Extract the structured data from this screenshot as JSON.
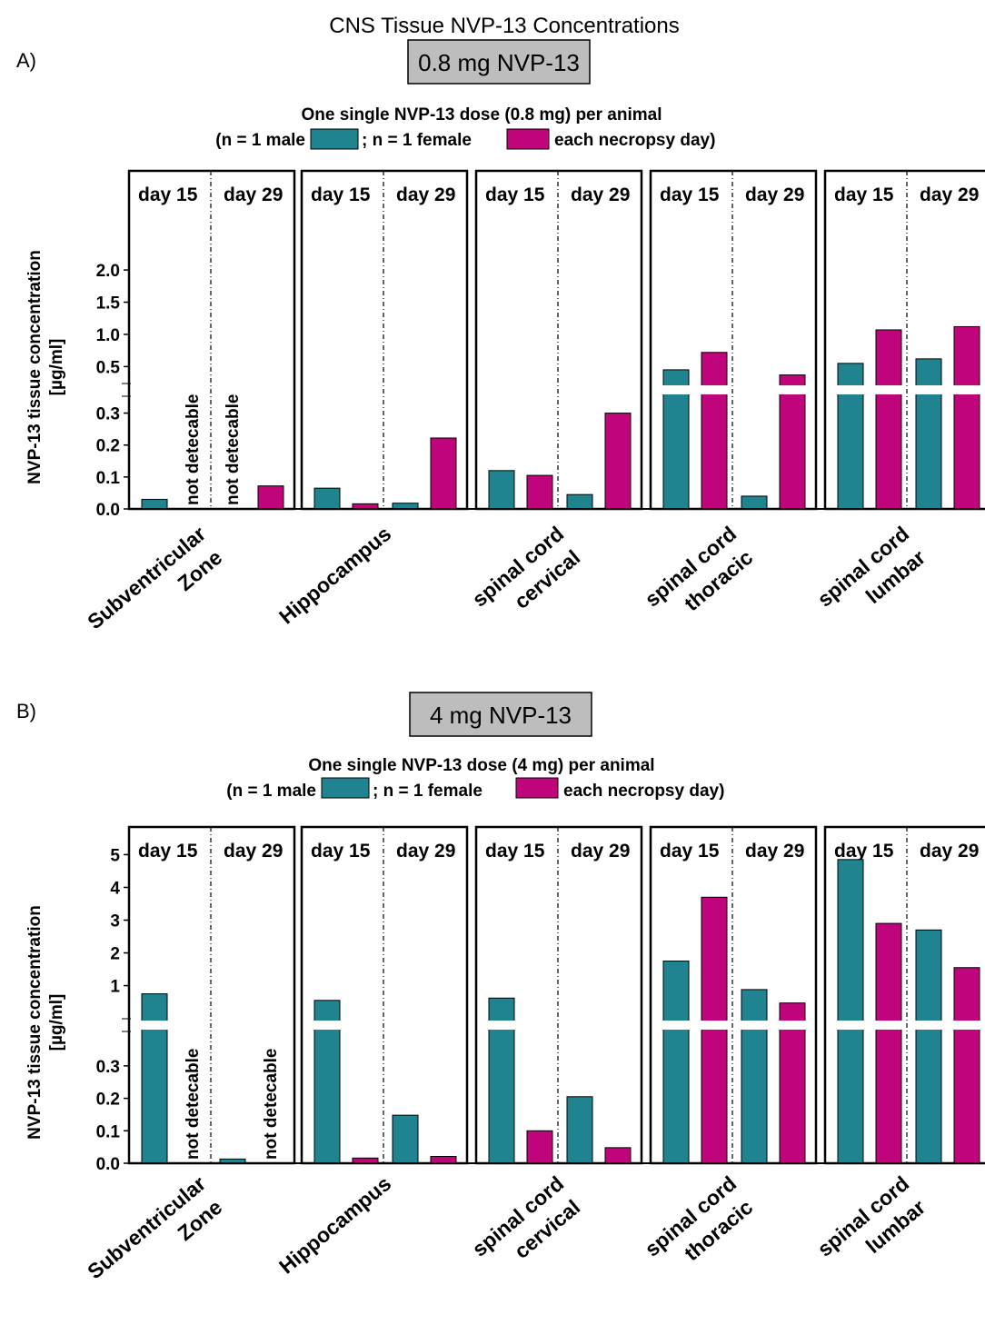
{
  "title": "CNS Tissue NVP-13 Concentrations",
  "colors": {
    "male": "#1f8490",
    "female": "#c0047b",
    "dose_box": "#bdbdbd"
  },
  "legend_text": {
    "male": "; n = 1 female",
    "female": "each necropsy day)"
  },
  "y_axis_label_line1": "NVP-13 tissue concentration",
  "y_axis_label_line2": "[µg/ml]",
  "day_labels": [
    "day 15",
    "day 29"
  ],
  "not_detectable_label": "not detecable",
  "tissues": [
    {
      "line1": "Subventricular",
      "line2": "Zone"
    },
    {
      "line1": "Hippocampus",
      "line2": ""
    },
    {
      "line1": "spinal cord",
      "line2": "cervical"
    },
    {
      "line1": "spinal cord",
      "line2": "thoracic"
    },
    {
      "line1": "spinal cord",
      "line2": "lumbar"
    }
  ],
  "chart_data": [
    {
      "type": "bar",
      "panel_label": "A)",
      "dose_label": "0.8 mg NVP-13",
      "subtitle_line1": "One single NVP-13 dose (0.8 mg) per animal",
      "subtitle_line2": "(n = 1 male",
      "units": "µg/ml",
      "axis_break": {
        "lower_range": [
          0,
          0.35
        ],
        "upper_range": [
          0.35,
          2.1
        ]
      },
      "lower_ticks": [
        0.0,
        0.1,
        0.2,
        0.3
      ],
      "upper_ticks": [
        0.5,
        1.0,
        1.5,
        2.0
      ],
      "categories": [
        "Subventricular Zone",
        "Hippocampus",
        "spinal cord cervical",
        "spinal cord thoracic",
        "spinal cord lumbar"
      ],
      "series": [
        {
          "name": "male day 15",
          "values": [
            0.03,
            0.065,
            0.12,
            0.45,
            0.55
          ]
        },
        {
          "name": "female day 15",
          "values": [
            null,
            0.016,
            0.105,
            0.72,
            1.07
          ]
        },
        {
          "name": "male day 29",
          "values": [
            null,
            0.018,
            0.045,
            0.04,
            0.62
          ]
        },
        {
          "name": "female day 29",
          "values": [
            0.072,
            0.222,
            0.3,
            0.37,
            1.12
          ]
        }
      ],
      "not_detectable": [
        [
          0,
          1
        ],
        [
          0,
          2
        ]
      ]
    },
    {
      "type": "bar",
      "panel_label": "B)",
      "dose_label": "4 mg NVP-13",
      "subtitle_line1": "One single NVP-13 dose (4 mg) per animal",
      "subtitle_line2": "(n = 1 male",
      "units": "µg/ml",
      "axis_break": {
        "lower_range": [
          0,
          0.35
        ],
        "upper_range": [
          0.35,
          5.4
        ]
      },
      "lower_ticks": [
        0.0,
        0.1,
        0.2,
        0.3
      ],
      "upper_ticks": [
        1,
        2,
        3,
        4,
        5
      ],
      "categories": [
        "Subventricular Zone",
        "Hippocampus",
        "spinal cord cervical",
        "spinal cord thoracic",
        "spinal cord lumbar"
      ],
      "series": [
        {
          "name": "male day 15",
          "values": [
            0.75,
            0.55,
            0.62,
            1.75,
            4.85
          ]
        },
        {
          "name": "female day 15",
          "values": [
            null,
            0.016,
            0.1,
            3.7,
            2.9
          ]
        },
        {
          "name": "male day 29",
          "values": [
            0.013,
            0.148,
            0.205,
            0.88,
            2.7
          ]
        },
        {
          "name": "female day 29",
          "values": [
            null,
            0.021,
            0.048,
            0.47,
            1.55
          ]
        }
      ],
      "not_detectable": [
        [
          0,
          1
        ],
        [
          0,
          3
        ]
      ]
    }
  ]
}
